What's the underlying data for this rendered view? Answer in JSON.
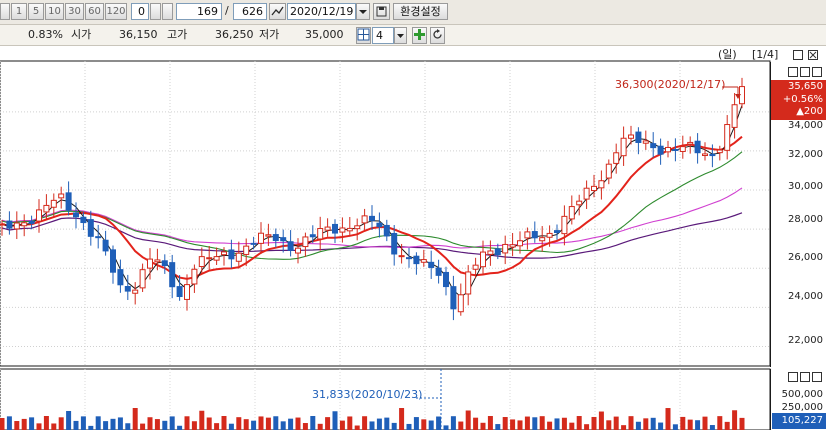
{
  "toolbar": {
    "period_buttons": [
      "1",
      "5",
      "10",
      "30",
      "60",
      "120"
    ],
    "count_value": "0",
    "current_index": "169",
    "separator": "/",
    "total_count": "626",
    "date_value": "2020/12/19",
    "settings_label": "환경설정"
  },
  "quote": {
    "change_rate": "0.83%",
    "open_label": "시가",
    "open_value": "36,150",
    "high_label": "고가",
    "high_value": "36,250",
    "low_label": "저가",
    "low_value": "35,000",
    "chart_count": "4"
  },
  "chart_header": {
    "period_label": "(일)",
    "page_indicator": "[1/4]"
  },
  "price_axis": {
    "labels": [
      "34,000",
      "32,000",
      "30,000",
      "28,000",
      "26,000",
      "24,000",
      "22,000"
    ]
  },
  "current_price": {
    "price": "35,650",
    "change_rate": "+0.56%",
    "change": "▲200"
  },
  "annotations": {
    "high_marker": "36,300(2020/12/17)",
    "volume_marker": "31,833(2020/10/23)"
  },
  "volume_axis": {
    "labels": [
      "500,000",
      "250,000"
    ],
    "current_volume": "105,227"
  },
  "colors": {
    "up": "#d42a1c",
    "down": "#1f5fb8",
    "ma5": "#1a1a1a",
    "ma20": "#e3231b",
    "ma60": "#2e8b2e",
    "ma120": "#d040d0",
    "ma240": "#5a1a7a"
  },
  "chart_data": {
    "type": "candlestick",
    "y_axis_ticks": [
      22000,
      24000,
      26000,
      28000,
      30000,
      32000,
      34000
    ],
    "ylim": [
      21000,
      36600
    ],
    "price_high_point": {
      "value": 36300,
      "date": "2020/12/17"
    },
    "last_close": 35650,
    "volume_high_point": {
      "value": 31833,
      "date": "2020/10/23"
    },
    "volume_ticks": [
      250000,
      500000
    ],
    "last_volume": 105227
  }
}
